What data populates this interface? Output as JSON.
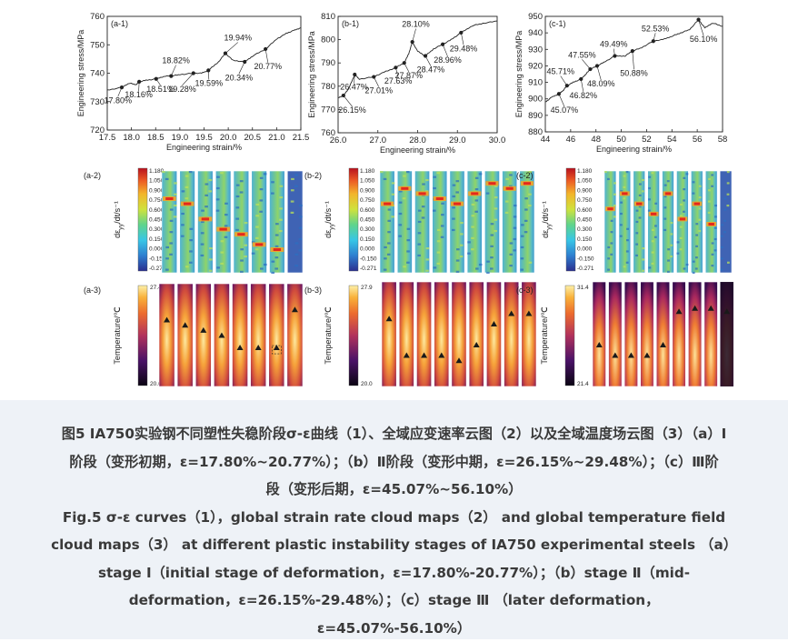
{
  "figure": {
    "charts": [
      {
        "id": "a1",
        "label": "(a-1)",
        "ylabel": "Engineering stress/MPa",
        "xlabel": "Engineering strain/%",
        "xlim": [
          17.5,
          21.5
        ],
        "ylim": [
          720,
          760
        ],
        "xticks": [
          "17.5",
          "18.0",
          "18.5",
          "19.0",
          "19.5",
          "20.0",
          "20.5",
          "21.0",
          "21.5"
        ],
        "yticks": [
          "720",
          "730",
          "740",
          "750",
          "760"
        ],
        "curve": [
          [
            17.5,
            734
          ],
          [
            17.8,
            735
          ],
          [
            17.95,
            736.5
          ],
          [
            18.1,
            736
          ],
          [
            18.16,
            737
          ],
          [
            18.3,
            737.5
          ],
          [
            18.51,
            738
          ],
          [
            18.7,
            739
          ],
          [
            18.82,
            739
          ],
          [
            19.0,
            739.5
          ],
          [
            19.28,
            740
          ],
          [
            19.45,
            740
          ],
          [
            19.59,
            741
          ],
          [
            19.8,
            744
          ],
          [
            19.94,
            747
          ],
          [
            20.1,
            744.5
          ],
          [
            20.34,
            744
          ],
          [
            20.5,
            746
          ],
          [
            20.77,
            748.5
          ],
          [
            21.0,
            752
          ],
          [
            21.2,
            754
          ],
          [
            21.35,
            755
          ],
          [
            21.5,
            756
          ]
        ],
        "points": [
          {
            "x": 17.8,
            "y": 735,
            "label": "17.80%",
            "lx": 17.72,
            "ly": 729.5
          },
          {
            "x": 18.16,
            "y": 737,
            "label": "18.16%",
            "lx": 18.15,
            "ly": 731.5
          },
          {
            "x": 18.51,
            "y": 738,
            "label": "18.51%",
            "lx": 18.6,
            "ly": 733.5
          },
          {
            "x": 18.82,
            "y": 739,
            "label": "18.82%",
            "lx": 18.92,
            "ly": 743.5
          },
          {
            "x": 19.28,
            "y": 740,
            "label": "19.28%",
            "lx": 19.05,
            "ly": 733.5
          },
          {
            "x": 19.59,
            "y": 741,
            "label": "19.59%",
            "lx": 19.6,
            "ly": 735.5
          },
          {
            "x": 19.94,
            "y": 747,
            "label": "19.94%",
            "lx": 20.2,
            "ly": 751.5
          },
          {
            "x": 20.34,
            "y": 744,
            "label": "20.34%",
            "lx": 20.22,
            "ly": 737.5
          },
          {
            "x": 20.77,
            "y": 748.5,
            "label": "20.77%",
            "lx": 20.82,
            "ly": 741.5
          }
        ]
      },
      {
        "id": "b1",
        "label": "(b-1)",
        "ylabel": "Engineering stress/MPa",
        "xlabel": "Engineering strain/%",
        "xlim": [
          26.0,
          30.5
        ],
        "ylim": [
          760,
          810
        ],
        "xticks": [
          "26.0",
          "27.0",
          "28.0",
          "29.0",
          "30.0"
        ],
        "yticks": [
          "760",
          "770",
          "780",
          "790",
          "800",
          "810"
        ],
        "curve": [
          [
            26.0,
            775
          ],
          [
            26.15,
            776
          ],
          [
            26.3,
            779
          ],
          [
            26.47,
            785
          ],
          [
            26.6,
            783
          ],
          [
            27.0,
            784
          ],
          [
            27.3,
            786
          ],
          [
            27.63,
            788
          ],
          [
            27.87,
            790
          ],
          [
            28.0,
            794
          ],
          [
            28.1,
            799
          ],
          [
            28.25,
            795
          ],
          [
            28.47,
            793
          ],
          [
            28.7,
            796
          ],
          [
            28.96,
            798
          ],
          [
            29.2,
            800
          ],
          [
            29.48,
            803
          ],
          [
            29.8,
            806
          ],
          [
            30.1,
            807
          ],
          [
            30.5,
            808
          ]
        ],
        "points": [
          {
            "x": 26.15,
            "y": 776,
            "label": "26.15%",
            "lx": 26.4,
            "ly": 768.5
          },
          {
            "x": 26.47,
            "y": 785,
            "label": "26.47%",
            "lx": 26.45,
            "ly": 778.5
          },
          {
            "x": 27.01,
            "y": 784,
            "label": "27.01%",
            "lx": 27.15,
            "ly": 777
          },
          {
            "x": 27.63,
            "y": 788,
            "label": "27.63%",
            "lx": 27.7,
            "ly": 781
          },
          {
            "x": 27.87,
            "y": 790,
            "label": "27.87%",
            "lx": 28.0,
            "ly": 783.5
          },
          {
            "x": 28.1,
            "y": 799,
            "label": "28.10%",
            "lx": 28.2,
            "ly": 805.5
          },
          {
            "x": 28.47,
            "y": 793,
            "label": "28.47%",
            "lx": 28.62,
            "ly": 786
          },
          {
            "x": 28.96,
            "y": 798,
            "label": "28.96%",
            "lx": 29.1,
            "ly": 790
          },
          {
            "x": 29.48,
            "y": 803,
            "label": "29.48%",
            "lx": 29.55,
            "ly": 795
          }
        ]
      },
      {
        "id": "c1",
        "label": "(c-1)",
        "ylabel": "Engineering stress/MPa",
        "xlabel": "Engineering strain/%",
        "xlim": [
          44,
          58
        ],
        "ylim": [
          880,
          950
        ],
        "xticks": [
          "44",
          "46",
          "48",
          "50",
          "52",
          "54",
          "56",
          "58"
        ],
        "yticks": [
          "880",
          "890",
          "900",
          "910",
          "920",
          "930",
          "940",
          "950"
        ],
        "curve": [
          [
            44,
            898
          ],
          [
            44.5,
            901
          ],
          [
            45.07,
            903
          ],
          [
            45.4,
            905
          ],
          [
            45.71,
            908
          ],
          [
            46.2,
            910
          ],
          [
            46.82,
            912
          ],
          [
            47.2,
            915
          ],
          [
            47.55,
            918
          ],
          [
            48.09,
            920
          ],
          [
            48.6,
            922
          ],
          [
            49.49,
            926
          ],
          [
            50.3,
            926
          ],
          [
            50.88,
            929
          ],
          [
            51.6,
            931
          ],
          [
            52.53,
            935
          ],
          [
            53.3,
            936
          ],
          [
            54.0,
            938
          ],
          [
            54.7,
            940
          ],
          [
            55.4,
            942
          ],
          [
            56.1,
            948
          ],
          [
            56.6,
            943
          ],
          [
            57.2,
            946
          ],
          [
            58,
            944
          ]
        ],
        "points": [
          {
            "x": 45.07,
            "y": 903,
            "label": "45.07%",
            "lx": 45.5,
            "ly": 891.5
          },
          {
            "x": 45.71,
            "y": 908,
            "label": "45.71%",
            "lx": 45.2,
            "ly": 915
          },
          {
            "x": 46.82,
            "y": 912,
            "label": "46.82%",
            "lx": 47.0,
            "ly": 900.5
          },
          {
            "x": 47.55,
            "y": 918,
            "label": "47.55%",
            "lx": 46.9,
            "ly": 925
          },
          {
            "x": 48.09,
            "y": 920,
            "label": "48.09%",
            "lx": 48.4,
            "ly": 907.5
          },
          {
            "x": 49.49,
            "y": 926,
            "label": "49.49%",
            "lx": 49.4,
            "ly": 931.5
          },
          {
            "x": 50.88,
            "y": 929,
            "label": "50.88%",
            "lx": 51.0,
            "ly": 914
          },
          {
            "x": 52.53,
            "y": 935,
            "label": "52.53%",
            "lx": 52.7,
            "ly": 941
          },
          {
            "x": 56.1,
            "y": 948,
            "label": "56.10%",
            "lx": 56.5,
            "ly": 934.5
          }
        ]
      }
    ],
    "maps": [
      {
        "id": "a2",
        "label": "(a-2)",
        "ylabel": "dε",
        "ylabel_sub": "yy",
        "ylabel_tail": "/dt/s⁻¹",
        "ticks": [
          "1.180",
          "1.050",
          "0.900",
          "0.750",
          "0.600",
          "0.450",
          "0.300",
          "0.150",
          "0.000",
          "-0.150",
          "-0.271"
        ],
        "strips": 8
      },
      {
        "id": "b2",
        "label": "(b-2)",
        "ylabel": "dε",
        "ylabel_sub": "yy",
        "ylabel_tail": "/dt/s⁻¹",
        "ticks": [
          "1.180",
          "1.050",
          "0.900",
          "0.750",
          "0.600",
          "0.450",
          "0.300",
          "0.150",
          "0.000",
          "-0.150",
          "-0.271"
        ],
        "strips": 9
      },
      {
        "id": "c2",
        "label": "(c-2)",
        "ylabel": "dε",
        "ylabel_sub": "yy",
        "ylabel_tail": "/dt/s⁻¹",
        "ticks": [
          "1.180",
          "1.050",
          "0.900",
          "0.750",
          "0.600",
          "0.450",
          "0.300",
          "0.150",
          "0.000",
          "-0.150",
          "-0.271"
        ],
        "strips": 9
      },
      {
        "id": "a3",
        "label": "(a-3)",
        "ylabel": "Temperature/℃",
        "ticks": [
          "27.4",
          "20.0"
        ],
        "strips": 8
      },
      {
        "id": "b3",
        "label": "(b-3)",
        "ylabel": "Temperature/℃",
        "ticks": [
          "27.9",
          "20.0"
        ],
        "strips": 9
      },
      {
        "id": "c3",
        "label": "(c-3)",
        "ylabel": "Temperature/℃",
        "ticks": [
          "31.4",
          "21.4"
        ],
        "strips": 9
      }
    ]
  },
  "caption": {
    "zh_1": "图5 IA750实验钢不同塑性失稳阶段σ-ε曲线（1）、全域应变速率云图（2）以及全域温度场云图（3）（a）Ⅰ",
    "zh_2": "阶段（变形初期，ε=17.80%~20.77%）；（b）Ⅱ阶段（变形中期，ε=26.15%~29.48%）；（c）Ⅲ阶",
    "zh_3": "段（变形后期，ε=45.07%~56.10%）",
    "en_1": "Fig.5 σ-ε curves（1），global strain rate cloud maps（2） and global temperature field",
    "en_2": "cloud maps（3） at different plastic instability stages of IA750 experimental steels （a）",
    "en_3": "stage Ⅰ（initial stage of deformation，ε=17.80%-20.77%）；（b）stage Ⅱ（mid-",
    "en_4": "deformation，ε=26.15%-29.48%）；（c）stage Ⅲ （later deformation，",
    "en_5": "ε=45.07%-56.10%）"
  },
  "colors": {
    "curve": "#222222",
    "marker": "#222222",
    "caption_bg": "#eef2f7",
    "caption_text": "#3a3a3a"
  }
}
